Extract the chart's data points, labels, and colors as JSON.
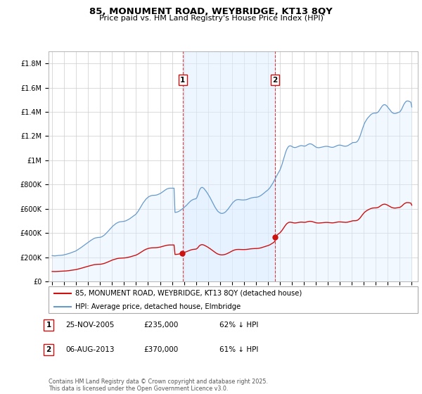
{
  "title": "85, MONUMENT ROAD, WEYBRIDGE, KT13 8QY",
  "subtitle": "Price paid vs. HM Land Registry's House Price Index (HPI)",
  "background_color": "#ffffff",
  "grid_color": "#cccccc",
  "hpi_color": "#6699cc",
  "hpi_fill_color": "#ddeeff",
  "price_color": "#cc1111",
  "ylim": [
    0,
    1900000
  ],
  "yticks": [
    0,
    200000,
    400000,
    600000,
    800000,
    1000000,
    1200000,
    1400000,
    1600000,
    1800000
  ],
  "ytick_labels": [
    "£0",
    "£200K",
    "£400K",
    "£600K",
    "£800K",
    "£1M",
    "£1.2M",
    "£1.4M",
    "£1.6M",
    "£1.8M"
  ],
  "sale1_year": 2005.9,
  "sale1_price": 235000,
  "sale2_year": 2013.6,
  "sale2_price": 370000,
  "legend_line1": "85, MONUMENT ROAD, WEYBRIDGE, KT13 8QY (detached house)",
  "legend_line2": "HPI: Average price, detached house, Elmbridge",
  "fn1_box": "1",
  "fn1_date": "25-NOV-2005",
  "fn1_price": "£235,000",
  "fn1_pct": "62% ↓ HPI",
  "fn2_box": "2",
  "fn2_date": "06-AUG-2013",
  "fn2_price": "£370,000",
  "fn2_pct": "61% ↓ HPI",
  "copyright": "Contains HM Land Registry data © Crown copyright and database right 2025.\nThis data is licensed under the Open Government Licence v3.0."
}
